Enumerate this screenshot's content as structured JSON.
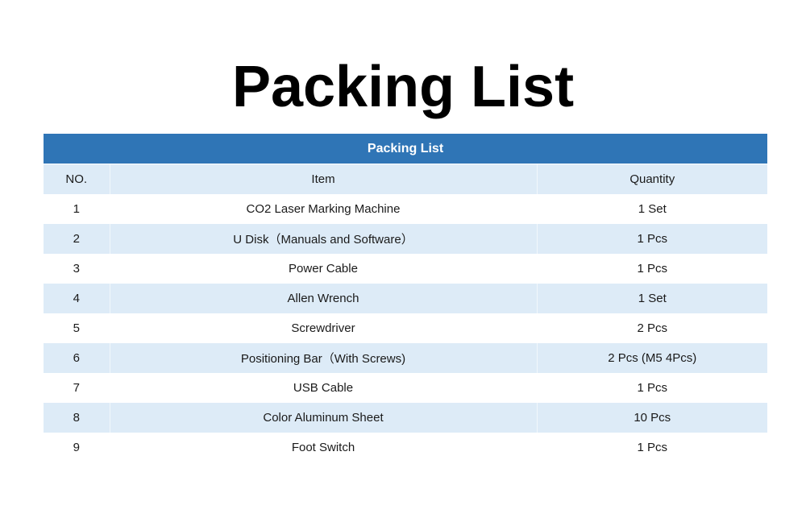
{
  "page": {
    "title": "Packing List"
  },
  "table": {
    "caption": "Packing List",
    "columns": [
      "NO.",
      "Item",
      "Quantity"
    ],
    "rows": [
      {
        "no": "1",
        "item": "CO2 Laser Marking Machine",
        "quantity": "1 Set"
      },
      {
        "no": "2",
        "item": "U Disk（Manuals and Software）",
        "quantity": "1 Pcs"
      },
      {
        "no": "3",
        "item": "Power Cable",
        "quantity": "1 Pcs"
      },
      {
        "no": "4",
        "item": "Allen Wrench",
        "quantity": "1 Set"
      },
      {
        "no": "5",
        "item": "Screwdriver",
        "quantity": "2 Pcs"
      },
      {
        "no": "6",
        "item": "Positioning Bar（With Screws)",
        "quantity": "2 Pcs (M5 4Pcs)"
      },
      {
        "no": "7",
        "item": "USB Cable",
        "quantity": "1 Pcs"
      },
      {
        "no": "8",
        "item": "Color Aluminum Sheet",
        "quantity": "10 Pcs"
      },
      {
        "no": "9",
        "item": "Foot Switch",
        "quantity": "1 Pcs"
      }
    ]
  },
  "colors": {
    "header_blue": "#2f75b6",
    "row_shade": "#ddebf7",
    "row_plain": "#ffffff"
  }
}
